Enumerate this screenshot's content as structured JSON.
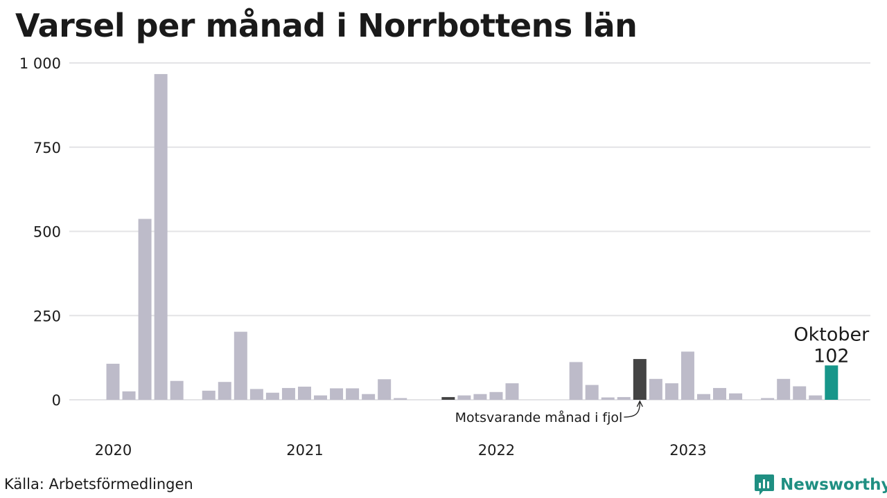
{
  "title": "Varsel per månad i Norrbottens län",
  "source": "Källa: Arbetsförmedlingen",
  "brand": {
    "name": "Newsworthy",
    "icon": "newsworthy-logo-icon",
    "color": "#1f8f82"
  },
  "chart_data": {
    "type": "bar",
    "title": "Varsel per månad i Norrbottens län",
    "xlabel": "",
    "ylabel": "",
    "ylim": [
      0,
      1000
    ],
    "yticks": [
      0,
      250,
      500,
      750,
      1000
    ],
    "ytick_labels": [
      "0",
      "250",
      "500",
      "750",
      "1 000"
    ],
    "grid": true,
    "year_labels": [
      "2020",
      "2021",
      "2022",
      "2023"
    ],
    "year_label_month_index": [
      0,
      12,
      24,
      36
    ],
    "colors": {
      "default": "#bdbbc9",
      "previous_year": "#444444",
      "highlight": "#17968a",
      "grid": "#e3e3e6"
    },
    "categories": [
      "2020-01",
      "2020-02",
      "2020-03",
      "2020-04",
      "2020-05",
      "2020-06",
      "2020-07",
      "2020-08",
      "2020-09",
      "2020-10",
      "2020-11",
      "2020-12",
      "2021-01",
      "2021-02",
      "2021-03",
      "2021-04",
      "2021-05",
      "2021-06",
      "2021-07",
      "2021-08",
      "2021-09",
      "2021-10",
      "2021-11",
      "2021-12",
      "2022-01",
      "2022-02",
      "2022-03",
      "2022-04",
      "2022-05",
      "2022-06",
      "2022-07",
      "2022-08",
      "2022-09",
      "2022-10",
      "2022-11",
      "2022-12",
      "2023-01",
      "2023-02",
      "2023-03",
      "2023-04",
      "2023-05",
      "2023-06",
      "2023-07",
      "2023-08",
      "2023-09",
      "2023-10"
    ],
    "values": [
      107,
      25,
      537,
      967,
      56,
      0,
      27,
      53,
      202,
      32,
      21,
      35,
      39,
      13,
      34,
      34,
      17,
      61,
      5,
      0,
      0,
      8,
      13,
      17,
      23,
      49,
      0,
      0,
      0,
      112,
      44,
      7,
      8,
      121,
      62,
      49,
      143,
      17,
      35,
      19,
      0,
      5,
      62,
      40,
      13,
      102
    ],
    "previous_year_months": [
      "2021-10",
      "2022-10"
    ],
    "highlight": {
      "month": "2023-10",
      "label": "Oktober",
      "value_label": "102"
    },
    "annotation": "Motsvarande månad i fjol"
  }
}
